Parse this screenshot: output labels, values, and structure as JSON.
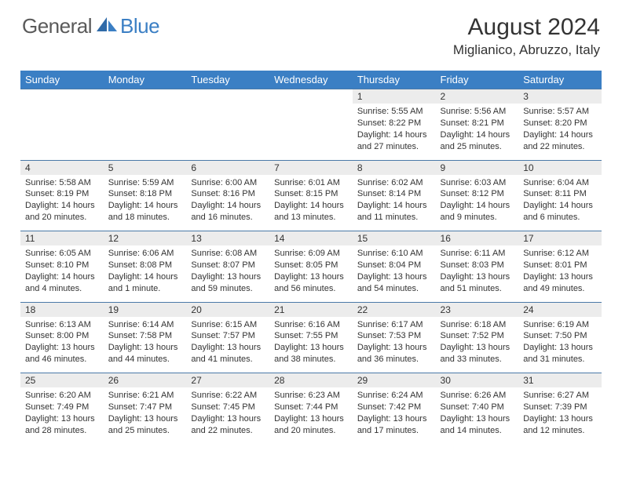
{
  "brand": {
    "part1": "General",
    "part2": "Blue"
  },
  "title": "August 2024",
  "location": "Miglianico, Abruzzo, Italy",
  "colors": {
    "header_bg": "#3b7fc4",
    "header_text": "#ffffff",
    "daynum_bg": "#ececec",
    "row_border": "#4a79a8",
    "body_text": "#333333",
    "logo_gray": "#5a5a5a",
    "logo_blue": "#3b7fc4"
  },
  "weekdays": [
    "Sunday",
    "Monday",
    "Tuesday",
    "Wednesday",
    "Thursday",
    "Friday",
    "Saturday"
  ],
  "weeks": [
    [
      null,
      null,
      null,
      null,
      {
        "n": "1",
        "sunrise": "5:55 AM",
        "sunset": "8:22 PM",
        "daylight": "14 hours and 27 minutes."
      },
      {
        "n": "2",
        "sunrise": "5:56 AM",
        "sunset": "8:21 PM",
        "daylight": "14 hours and 25 minutes."
      },
      {
        "n": "3",
        "sunrise": "5:57 AM",
        "sunset": "8:20 PM",
        "daylight": "14 hours and 22 minutes."
      }
    ],
    [
      {
        "n": "4",
        "sunrise": "5:58 AM",
        "sunset": "8:19 PM",
        "daylight": "14 hours and 20 minutes."
      },
      {
        "n": "5",
        "sunrise": "5:59 AM",
        "sunset": "8:18 PM",
        "daylight": "14 hours and 18 minutes."
      },
      {
        "n": "6",
        "sunrise": "6:00 AM",
        "sunset": "8:16 PM",
        "daylight": "14 hours and 16 minutes."
      },
      {
        "n": "7",
        "sunrise": "6:01 AM",
        "sunset": "8:15 PM",
        "daylight": "14 hours and 13 minutes."
      },
      {
        "n": "8",
        "sunrise": "6:02 AM",
        "sunset": "8:14 PM",
        "daylight": "14 hours and 11 minutes."
      },
      {
        "n": "9",
        "sunrise": "6:03 AM",
        "sunset": "8:12 PM",
        "daylight": "14 hours and 9 minutes."
      },
      {
        "n": "10",
        "sunrise": "6:04 AM",
        "sunset": "8:11 PM",
        "daylight": "14 hours and 6 minutes."
      }
    ],
    [
      {
        "n": "11",
        "sunrise": "6:05 AM",
        "sunset": "8:10 PM",
        "daylight": "14 hours and 4 minutes."
      },
      {
        "n": "12",
        "sunrise": "6:06 AM",
        "sunset": "8:08 PM",
        "daylight": "14 hours and 1 minute."
      },
      {
        "n": "13",
        "sunrise": "6:08 AM",
        "sunset": "8:07 PM",
        "daylight": "13 hours and 59 minutes."
      },
      {
        "n": "14",
        "sunrise": "6:09 AM",
        "sunset": "8:05 PM",
        "daylight": "13 hours and 56 minutes."
      },
      {
        "n": "15",
        "sunrise": "6:10 AM",
        "sunset": "8:04 PM",
        "daylight": "13 hours and 54 minutes."
      },
      {
        "n": "16",
        "sunrise": "6:11 AM",
        "sunset": "8:03 PM",
        "daylight": "13 hours and 51 minutes."
      },
      {
        "n": "17",
        "sunrise": "6:12 AM",
        "sunset": "8:01 PM",
        "daylight": "13 hours and 49 minutes."
      }
    ],
    [
      {
        "n": "18",
        "sunrise": "6:13 AM",
        "sunset": "8:00 PM",
        "daylight": "13 hours and 46 minutes."
      },
      {
        "n": "19",
        "sunrise": "6:14 AM",
        "sunset": "7:58 PM",
        "daylight": "13 hours and 44 minutes."
      },
      {
        "n": "20",
        "sunrise": "6:15 AM",
        "sunset": "7:57 PM",
        "daylight": "13 hours and 41 minutes."
      },
      {
        "n": "21",
        "sunrise": "6:16 AM",
        "sunset": "7:55 PM",
        "daylight": "13 hours and 38 minutes."
      },
      {
        "n": "22",
        "sunrise": "6:17 AM",
        "sunset": "7:53 PM",
        "daylight": "13 hours and 36 minutes."
      },
      {
        "n": "23",
        "sunrise": "6:18 AM",
        "sunset": "7:52 PM",
        "daylight": "13 hours and 33 minutes."
      },
      {
        "n": "24",
        "sunrise": "6:19 AM",
        "sunset": "7:50 PM",
        "daylight": "13 hours and 31 minutes."
      }
    ],
    [
      {
        "n": "25",
        "sunrise": "6:20 AM",
        "sunset": "7:49 PM",
        "daylight": "13 hours and 28 minutes."
      },
      {
        "n": "26",
        "sunrise": "6:21 AM",
        "sunset": "7:47 PM",
        "daylight": "13 hours and 25 minutes."
      },
      {
        "n": "27",
        "sunrise": "6:22 AM",
        "sunset": "7:45 PM",
        "daylight": "13 hours and 22 minutes."
      },
      {
        "n": "28",
        "sunrise": "6:23 AM",
        "sunset": "7:44 PM",
        "daylight": "13 hours and 20 minutes."
      },
      {
        "n": "29",
        "sunrise": "6:24 AM",
        "sunset": "7:42 PM",
        "daylight": "13 hours and 17 minutes."
      },
      {
        "n": "30",
        "sunrise": "6:26 AM",
        "sunset": "7:40 PM",
        "daylight": "13 hours and 14 minutes."
      },
      {
        "n": "31",
        "sunrise": "6:27 AM",
        "sunset": "7:39 PM",
        "daylight": "13 hours and 12 minutes."
      }
    ]
  ],
  "labels": {
    "sunrise_prefix": "Sunrise: ",
    "sunset_prefix": "Sunset: ",
    "daylight_prefix": "Daylight: "
  }
}
